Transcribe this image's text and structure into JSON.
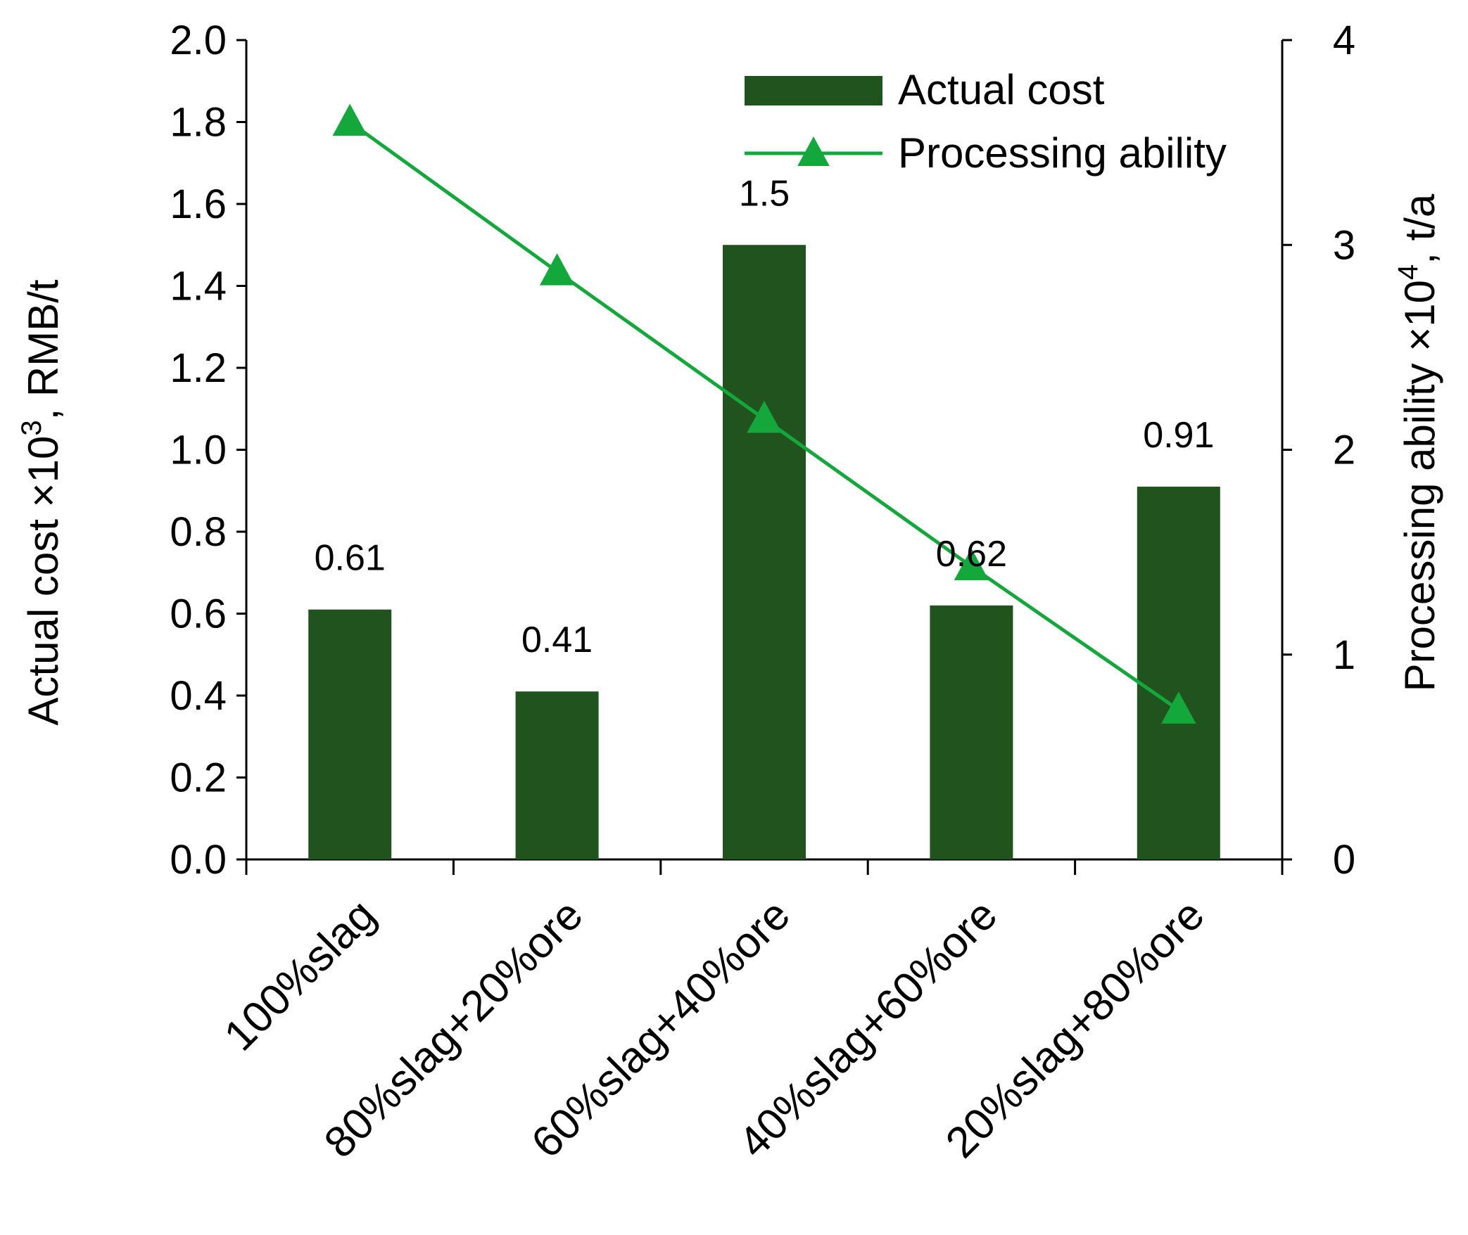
{
  "chart_data": {
    "type": "bar+line",
    "categories": [
      "100%slag",
      "80%slag+20%ore",
      "60%slag+40%ore",
      "40%slag+60%ore",
      "20%slag+80%ore"
    ],
    "series": [
      {
        "name": "Actual cost",
        "kind": "bar",
        "axis": "left",
        "color": "#20531e",
        "values": [
          0.61,
          0.41,
          1.5,
          0.62,
          0.91
        ],
        "data_labels": [
          "0.61",
          "0.41",
          "1.5",
          "0.62",
          "0.91"
        ]
      },
      {
        "name": "Processing ability",
        "kind": "line",
        "axis": "right",
        "color": "#14a83c",
        "marker": "triangle",
        "values": [
          3.6,
          2.87,
          2.15,
          1.43,
          0.73
        ]
      }
    ],
    "left_axis": {
      "label_main": "Actual cost ×10",
      "label_sup": "3",
      "label_tail": ",  RMB/t",
      "ylim": [
        0,
        2.0
      ],
      "ticks": [
        "0.0",
        "0.2",
        "0.4",
        "0.6",
        "0.8",
        "1.0",
        "1.2",
        "1.4",
        "1.6",
        "1.8",
        "2.0"
      ]
    },
    "right_axis": {
      "label_main": "Processing ability ×10",
      "label_sup": "4",
      "label_tail": ", t/a",
      "ylim": [
        0,
        4
      ],
      "ticks": [
        "0",
        "1",
        "2",
        "3",
        "4"
      ]
    },
    "legend": {
      "position": "top-right",
      "items": [
        "Actual cost",
        "Processing ability"
      ]
    },
    "grid": false
  }
}
